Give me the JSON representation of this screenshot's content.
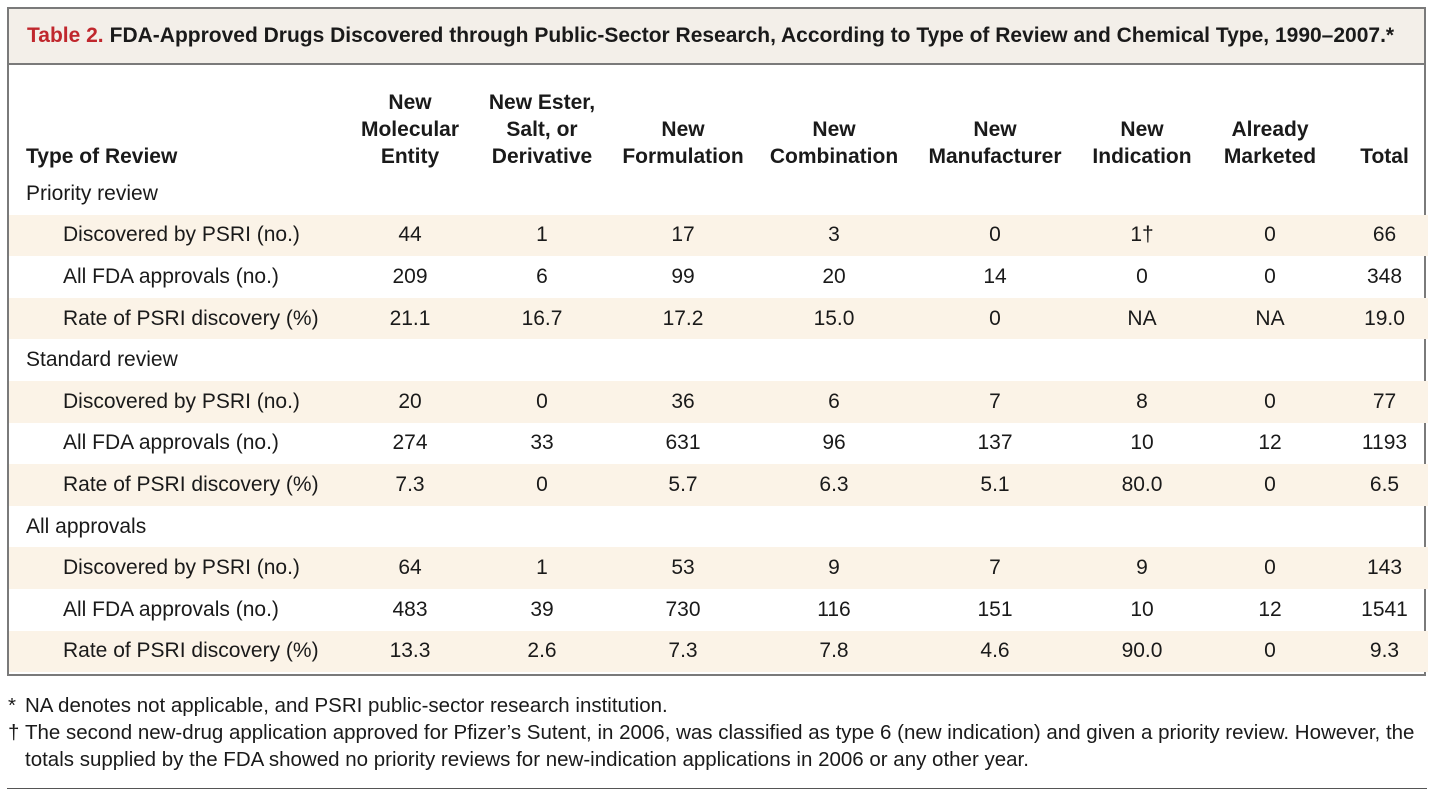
{
  "table": {
    "label": "Table 2.",
    "title": "FDA-Approved Drugs Discovered through Public-Sector Research, According to Type of Review and Chemical Type, 1990–2007.*",
    "header": {
      "type_of_review": "Type of Review",
      "columns": [
        [
          "New",
          "Molecular",
          "Entity"
        ],
        [
          "New Ester,",
          "Salt, or",
          "Derivative"
        ],
        [
          "New",
          "Formulation"
        ],
        [
          "New",
          "Combination"
        ],
        [
          "New",
          "Manufacturer"
        ],
        [
          "New",
          "Indication"
        ],
        [
          "Already",
          "Marketed"
        ],
        [
          "Total"
        ]
      ]
    },
    "sections": [
      {
        "name": "Priority review",
        "rows": [
          {
            "label": "Discovered by PSRI (no.)",
            "values": [
              "44",
              "1",
              "17",
              "3",
              "0",
              "1†",
              "0",
              "66"
            ]
          },
          {
            "label": "All FDA approvals (no.)",
            "values": [
              "209",
              "6",
              "99",
              "20",
              "14",
              "0",
              "0",
              "348"
            ]
          },
          {
            "label": "Rate of PSRI discovery (%)",
            "values": [
              "21.1",
              "16.7",
              "17.2",
              "15.0",
              "0",
              "NA",
              "NA",
              "19.0"
            ]
          }
        ]
      },
      {
        "name": "Standard review",
        "rows": [
          {
            "label": "Discovered by PSRI (no.)",
            "values": [
              "20",
              "0",
              "36",
              "6",
              "7",
              "8",
              "0",
              "77"
            ]
          },
          {
            "label": "All FDA approvals (no.)",
            "values": [
              "274",
              "33",
              "631",
              "96",
              "137",
              "10",
              "12",
              "1193"
            ]
          },
          {
            "label": "Rate of PSRI discovery (%)",
            "values": [
              "7.3",
              "0",
              "5.7",
              "6.3",
              "5.1",
              "80.0",
              "0",
              "6.5"
            ]
          }
        ]
      },
      {
        "name": "All approvals",
        "rows": [
          {
            "label": "Discovered by PSRI (no.)",
            "values": [
              "64",
              "1",
              "53",
              "9",
              "7",
              "9",
              "0",
              "143"
            ]
          },
          {
            "label": "All FDA approvals (no.)",
            "values": [
              "483",
              "39",
              "730",
              "116",
              "151",
              "10",
              "12",
              "1541"
            ]
          },
          {
            "label": "Rate of PSRI discovery (%)",
            "values": [
              "13.3",
              "2.6",
              "7.3",
              "7.8",
              "4.6",
              "90.0",
              "0",
              "9.3"
            ]
          }
        ]
      }
    ]
  },
  "footnotes": [
    {
      "mark": "*",
      "text": "NA denotes not applicable, and PSRI public-sector research institution."
    },
    {
      "mark": "†",
      "text": "The second new-drug application approved for Pfizer’s Sutent, in 2006, was classified as type 6 (new indication) and given a priority review. However, the totals supplied by the FDA showed no priority reviews for new-indication applications in 2006 or any other year."
    }
  ]
}
